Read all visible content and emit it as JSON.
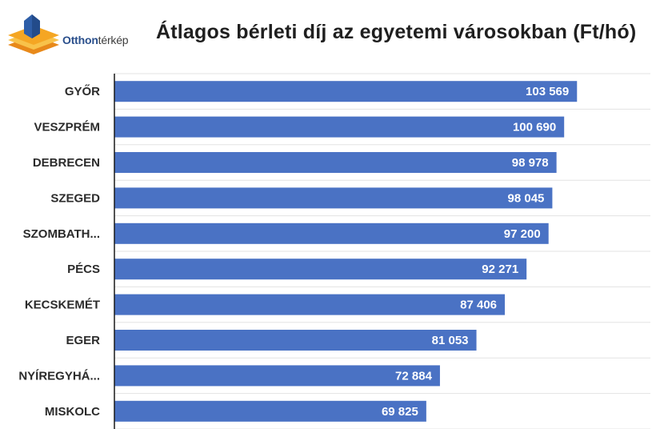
{
  "logo": {
    "text_bold": "Otthon",
    "text_light": "térkép",
    "colors": {
      "house": "#2e5ea8",
      "layer1": "#f5a623",
      "layer2": "#f8c24a",
      "layer3": "#e8891a"
    }
  },
  "chart_data": {
    "type": "bar",
    "orientation": "horizontal",
    "title": "Átlagos bérleti díj az egyetemi városokban  (Ft/hó)",
    "categories": [
      "GYŐR",
      "VESZPRÉM",
      "DEBRECEN",
      "SZEGED",
      "SZOMBATH...",
      "PÉCS",
      "KECSKEMÉT",
      "EGER",
      "NYÍREGYHÁ...",
      "MISKOLC"
    ],
    "values": [
      103569,
      100690,
      98978,
      98045,
      97200,
      92271,
      87406,
      81053,
      72884,
      69825
    ],
    "value_labels": [
      "103 569",
      "100 690",
      "98 978",
      "98 045",
      "97 200",
      "92 271",
      "87 406",
      "81 053",
      "72 884",
      "69 825"
    ],
    "xlim": [
      0,
      120000
    ],
    "grid": true,
    "legend": "none",
    "bar_color": "#4a72c4",
    "label_color": "#ffffff"
  }
}
